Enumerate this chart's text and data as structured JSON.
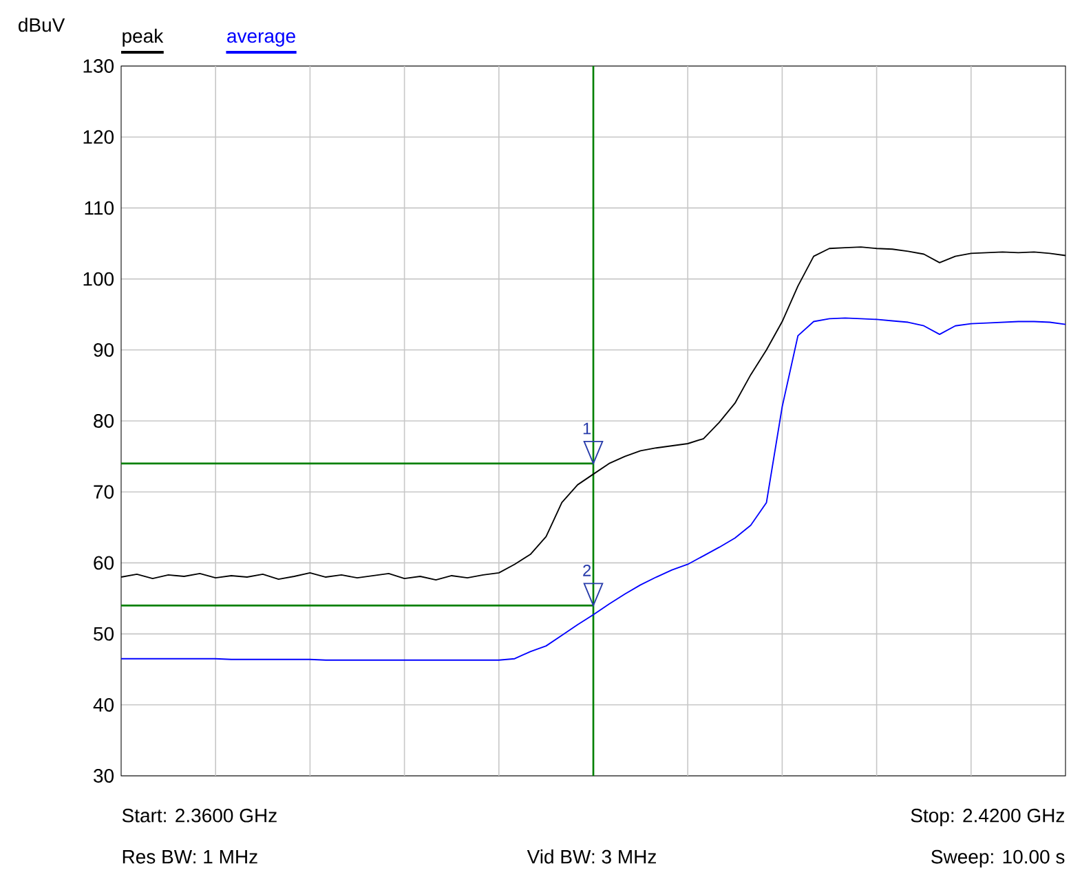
{
  "chart_data": {
    "type": "line",
    "ylabel": "dBuV",
    "categories": [
      null,
      null,
      null,
      null,
      null,
      null,
      null,
      null,
      null,
      null,
      null,
      null,
      null,
      null,
      null,
      null,
      null,
      null,
      null,
      null,
      null,
      null,
      null,
      null,
      null,
      null,
      null,
      null,
      null,
      null,
      null,
      null,
      null,
      null,
      null,
      null,
      null,
      null,
      null,
      null,
      null,
      null,
      null,
      null,
      null,
      null,
      null,
      null,
      null,
      null,
      null,
      null,
      null,
      null,
      null,
      null,
      null,
      null,
      null,
      null,
      null
    ],
    "ylim": [
      30,
      130
    ],
    "yticks": [
      30,
      40,
      50,
      60,
      70,
      80,
      90,
      100,
      110,
      120,
      130
    ],
    "grid": true,
    "legend": "top left",
    "series": [
      {
        "name": "peak",
        "color": "#000000",
        "values": [
          58.0,
          58.4,
          57.8,
          58.3,
          58.1,
          58.5,
          57.9,
          58.2,
          58.0,
          58.4,
          57.7,
          58.1,
          58.6,
          58.0,
          58.3,
          57.9,
          58.2,
          58.5,
          57.8,
          58.1,
          57.6,
          58.2,
          57.9,
          58.3,
          58.6,
          59.8,
          61.2,
          63.7,
          68.5,
          71,
          72.5,
          74,
          75,
          75.8,
          76.2,
          76.5,
          76.8,
          77.5,
          79.8,
          82.5,
          86.5,
          90,
          94,
          99,
          103.2,
          104.3,
          104.4,
          104.5,
          104.3,
          104.2,
          103.9,
          103.5,
          102.3,
          103.2,
          103.6,
          103.7,
          103.8,
          103.7,
          103.8,
          103.6,
          103.3
        ]
      },
      {
        "name": "average",
        "color": "#0000ff",
        "values": [
          46.5,
          46.5,
          46.5,
          46.5,
          46.5,
          46.5,
          46.5,
          46.4,
          46.4,
          46.4,
          46.4,
          46.4,
          46.4,
          46.3,
          46.3,
          46.3,
          46.3,
          46.3,
          46.3,
          46.3,
          46.3,
          46.3,
          46.3,
          46.3,
          46.3,
          46.5,
          47.5,
          48.3,
          49.8,
          51.3,
          52.7,
          54.2,
          55.6,
          56.9,
          58.0,
          59.0,
          59.8,
          61.0,
          62.2,
          63.5,
          65.3,
          68.5,
          82,
          92,
          94.0,
          94.4,
          94.5,
          94.4,
          94.3,
          94.1,
          93.9,
          93.4,
          92.2,
          93.4,
          93.7,
          93.8,
          93.9,
          94.0,
          94.0,
          93.9,
          93.6
        ]
      }
    ],
    "ref_lines": [
      {
        "axis": "y",
        "value": 74,
        "color": "#008000"
      },
      {
        "axis": "y",
        "value": 54,
        "color": "#008000"
      }
    ],
    "annotations": [
      "Start: 2.3600 GHz",
      "Stop: 2.4200 GHz",
      "Res BW: 1 MHz",
      "Vid BW: 3 MHz",
      "Sweep: 10.00 s",
      {
        "text": "1",
        "y": 74
      },
      {
        "text": "2",
        "y": 54
      }
    ]
  }
}
